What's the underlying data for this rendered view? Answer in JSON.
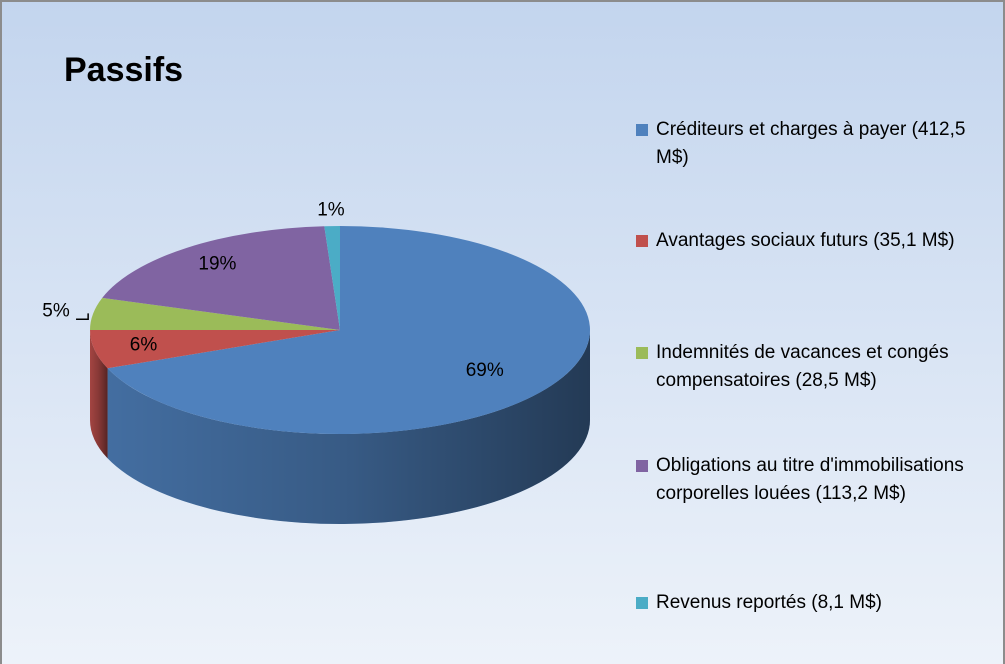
{
  "chart_data": {
    "type": "pie",
    "title": "Passifs",
    "categories": [
      "Créditeurs et charges à payer (412,5 M$)",
      "Avantages sociaux futurs (35,1 M$)",
      "Indemnités de vacances et congés compensatoires (28,5 M$)",
      "Obligations au titre d'immobilisations corporelles louées (113,2 M$)",
      "Revenus reportés (8,1 M$)"
    ],
    "values": [
      69,
      6,
      5,
      19,
      1
    ],
    "value_labels": [
      "69%",
      "6%",
      "5%",
      "19%",
      "1%"
    ],
    "colors": [
      "#4f81bd",
      "#c0504d",
      "#9bbb59",
      "#8064a2",
      "#4bacc6"
    ],
    "legend": "right"
  }
}
